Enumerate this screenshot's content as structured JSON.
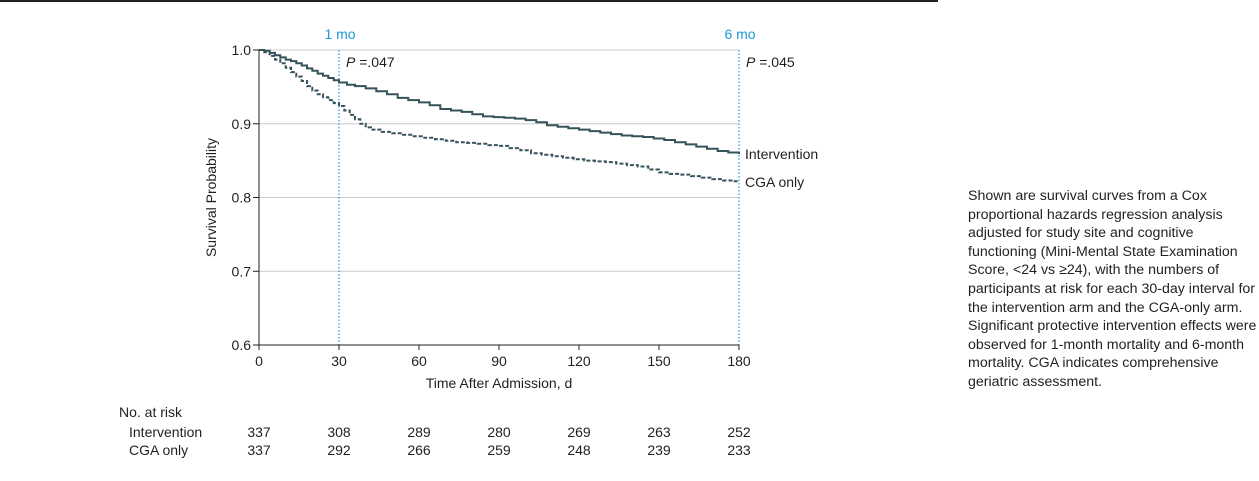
{
  "chart_data": {
    "type": "line",
    "title": "",
    "xlabel": "Time After Admission, d",
    "ylabel": "Survival Probability",
    "xlim": [
      0,
      180
    ],
    "ylim": [
      0.6,
      1.0
    ],
    "xticks": [
      0,
      30,
      60,
      90,
      120,
      150,
      180
    ],
    "xtick_labels": [
      "0",
      "30",
      "60",
      "90",
      "120",
      "150",
      "180"
    ],
    "yticks": [
      0.6,
      0.7,
      0.8,
      0.9,
      1.0
    ],
    "ytick_labels": [
      "0.6",
      "0.7",
      "0.8",
      "0.9",
      "1.0"
    ],
    "grid": "horizontal",
    "colors": {
      "curve": "#35535a",
      "marker": "#1a9ad6",
      "text": "#231f20",
      "grid": "#cccccc"
    },
    "series": [
      {
        "name": "Intervention",
        "line_style": "solid",
        "points": [
          [
            0,
            1.0
          ],
          [
            2,
            0.999
          ],
          [
            4,
            0.996
          ],
          [
            6,
            0.993
          ],
          [
            8,
            0.99
          ],
          [
            10,
            0.987
          ],
          [
            12,
            0.985
          ],
          [
            14,
            0.982
          ],
          [
            16,
            0.979
          ],
          [
            18,
            0.975
          ],
          [
            20,
            0.972
          ],
          [
            22,
            0.968
          ],
          [
            24,
            0.965
          ],
          [
            26,
            0.962
          ],
          [
            28,
            0.959
          ],
          [
            30,
            0.956
          ],
          [
            33,
            0.953
          ],
          [
            36,
            0.951
          ],
          [
            40,
            0.948
          ],
          [
            44,
            0.944
          ],
          [
            48,
            0.94
          ],
          [
            52,
            0.935
          ],
          [
            56,
            0.932
          ],
          [
            60,
            0.929
          ],
          [
            64,
            0.925
          ],
          [
            68,
            0.92
          ],
          [
            72,
            0.918
          ],
          [
            76,
            0.916
          ],
          [
            80,
            0.913
          ],
          [
            84,
            0.91
          ],
          [
            88,
            0.909
          ],
          [
            92,
            0.908
          ],
          [
            96,
            0.907
          ],
          [
            100,
            0.905
          ],
          [
            104,
            0.902
          ],
          [
            108,
            0.898
          ],
          [
            112,
            0.896
          ],
          [
            116,
            0.894
          ],
          [
            120,
            0.892
          ],
          [
            124,
            0.89
          ],
          [
            128,
            0.888
          ],
          [
            132,
            0.886
          ],
          [
            136,
            0.884
          ],
          [
            140,
            0.883
          ],
          [
            144,
            0.882
          ],
          [
            148,
            0.88
          ],
          [
            152,
            0.878
          ],
          [
            156,
            0.875
          ],
          [
            160,
            0.872
          ],
          [
            164,
            0.869
          ],
          [
            168,
            0.866
          ],
          [
            172,
            0.863
          ],
          [
            176,
            0.861
          ],
          [
            180,
            0.859
          ]
        ]
      },
      {
        "name": "CGA only",
        "line_style": "dashed",
        "points": [
          [
            0,
            1.0
          ],
          [
            2,
            0.997
          ],
          [
            4,
            0.992
          ],
          [
            6,
            0.987
          ],
          [
            8,
            0.982
          ],
          [
            10,
            0.976
          ],
          [
            12,
            0.97
          ],
          [
            14,
            0.964
          ],
          [
            16,
            0.958
          ],
          [
            18,
            0.951
          ],
          [
            20,
            0.945
          ],
          [
            22,
            0.94
          ],
          [
            24,
            0.936
          ],
          [
            26,
            0.932
          ],
          [
            28,
            0.928
          ],
          [
            30,
            0.924
          ],
          [
            32,
            0.918
          ],
          [
            34,
            0.912
          ],
          [
            36,
            0.906
          ],
          [
            38,
            0.9
          ],
          [
            40,
            0.895
          ],
          [
            42,
            0.892
          ],
          [
            46,
            0.889
          ],
          [
            50,
            0.887
          ],
          [
            54,
            0.885
          ],
          [
            58,
            0.883
          ],
          [
            62,
            0.881
          ],
          [
            66,
            0.879
          ],
          [
            70,
            0.877
          ],
          [
            74,
            0.875
          ],
          [
            78,
            0.874
          ],
          [
            82,
            0.873
          ],
          [
            86,
            0.871
          ],
          [
            90,
            0.87
          ],
          [
            94,
            0.867
          ],
          [
            98,
            0.864
          ],
          [
            102,
            0.86
          ],
          [
            106,
            0.858
          ],
          [
            110,
            0.856
          ],
          [
            114,
            0.854
          ],
          [
            118,
            0.852
          ],
          [
            122,
            0.85
          ],
          [
            126,
            0.849
          ],
          [
            130,
            0.848
          ],
          [
            134,
            0.846
          ],
          [
            138,
            0.844
          ],
          [
            142,
            0.842
          ],
          [
            146,
            0.838
          ],
          [
            150,
            0.834
          ],
          [
            154,
            0.832
          ],
          [
            158,
            0.831
          ],
          [
            162,
            0.829
          ],
          [
            166,
            0.827
          ],
          [
            170,
            0.825
          ],
          [
            174,
            0.823
          ],
          [
            178,
            0.822
          ],
          [
            180,
            0.821
          ]
        ]
      }
    ],
    "markers": [
      {
        "label": "1 mo",
        "x": 30,
        "p_label": "P",
        "p_value": " =.047"
      },
      {
        "label": "6 mo",
        "x": 180,
        "p_label": "P",
        "p_value": " =.045"
      }
    ],
    "risk_table": {
      "title": "No. at risk",
      "rows": [
        {
          "label": "Intervention",
          "values": [
            337,
            308,
            289,
            280,
            269,
            263,
            252
          ]
        },
        {
          "label": "CGA only",
          "values": [
            337,
            292,
            266,
            259,
            248,
            239,
            233
          ]
        }
      ]
    }
  },
  "caption": "Shown are survival curves from a Cox proportional hazards regression analysis adjusted for study site and cognitive functioning (Mini-Mental State Examination Score, <24 vs ≥24), with the numbers of participants at risk for each 30-day interval for the intervention arm and the CGA-only arm. Significant protective intervention effects were observed for 1-month mortality and 6-month mortality. CGA indicates comprehensive geriatric assessment."
}
